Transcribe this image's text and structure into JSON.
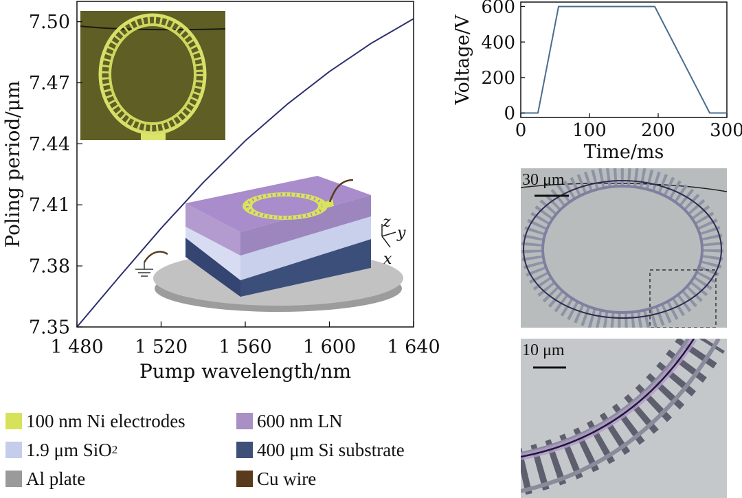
{
  "chart_data": [
    {
      "type": "line",
      "xlabel": "Pump wavelength/nm",
      "ylabel": "Poling period/μm",
      "xlim": [
        1480,
        1640
      ],
      "ylim": [
        7.35,
        7.51
      ],
      "xticks": [
        1480,
        1520,
        1560,
        1600,
        1640
      ],
      "xtick_labels": [
        "1 480",
        "1 520",
        "1 560",
        "1 600",
        "1 640"
      ],
      "yticks": [
        7.35,
        7.38,
        7.41,
        7.44,
        7.47,
        7.5
      ],
      "ytick_labels": [
        "7.35",
        "7.38",
        "7.41",
        "7.44",
        "7.47",
        "7.50"
      ],
      "grid": false,
      "series": [
        {
          "color": "#2b2f6e",
          "x": [
            1480,
            1500,
            1520,
            1540,
            1560,
            1580,
            1600,
            1620,
            1640
          ],
          "y": [
            7.35,
            7.3745,
            7.3985,
            7.421,
            7.4415,
            7.4595,
            7.4755,
            7.4895,
            7.5015
          ]
        }
      ]
    },
    {
      "type": "line",
      "xlabel": "Time/ms",
      "ylabel": "Voltage/V",
      "xlim": [
        0,
        300
      ],
      "ylim": [
        -25,
        625
      ],
      "xticks": [
        0,
        100,
        200,
        300
      ],
      "yticks": [
        0,
        200,
        400,
        600
      ],
      "grid": false,
      "series": [
        {
          "color": "#4a6c8c",
          "x": [
            0,
            25,
            55,
            195,
            275,
            300
          ],
          "y": [
            0,
            0,
            600,
            600,
            0,
            0
          ]
        }
      ]
    }
  ],
  "legend": {
    "items": [
      {
        "label": "100 nm Ni electrodes",
        "color": "#d6e35a"
      },
      {
        "label": "600 nm LN",
        "color": "#a98fc4"
      },
      {
        "label": "1.9 μm SiO",
        "sub": "2",
        "color": "#c4cde9"
      },
      {
        "label": "400 μm Si substrate",
        "color": "#3f5078"
      },
      {
        "label": "Al plate",
        "color": "#9a9a9a"
      },
      {
        "label": "Cu wire",
        "color": "#5a3a1c"
      }
    ]
  },
  "micrographs": {
    "top_scale": "30 μm",
    "bottom_scale": "10 μm"
  },
  "diagram": {
    "axis_z": "z",
    "axis_y": "y",
    "axis_x": "x"
  }
}
